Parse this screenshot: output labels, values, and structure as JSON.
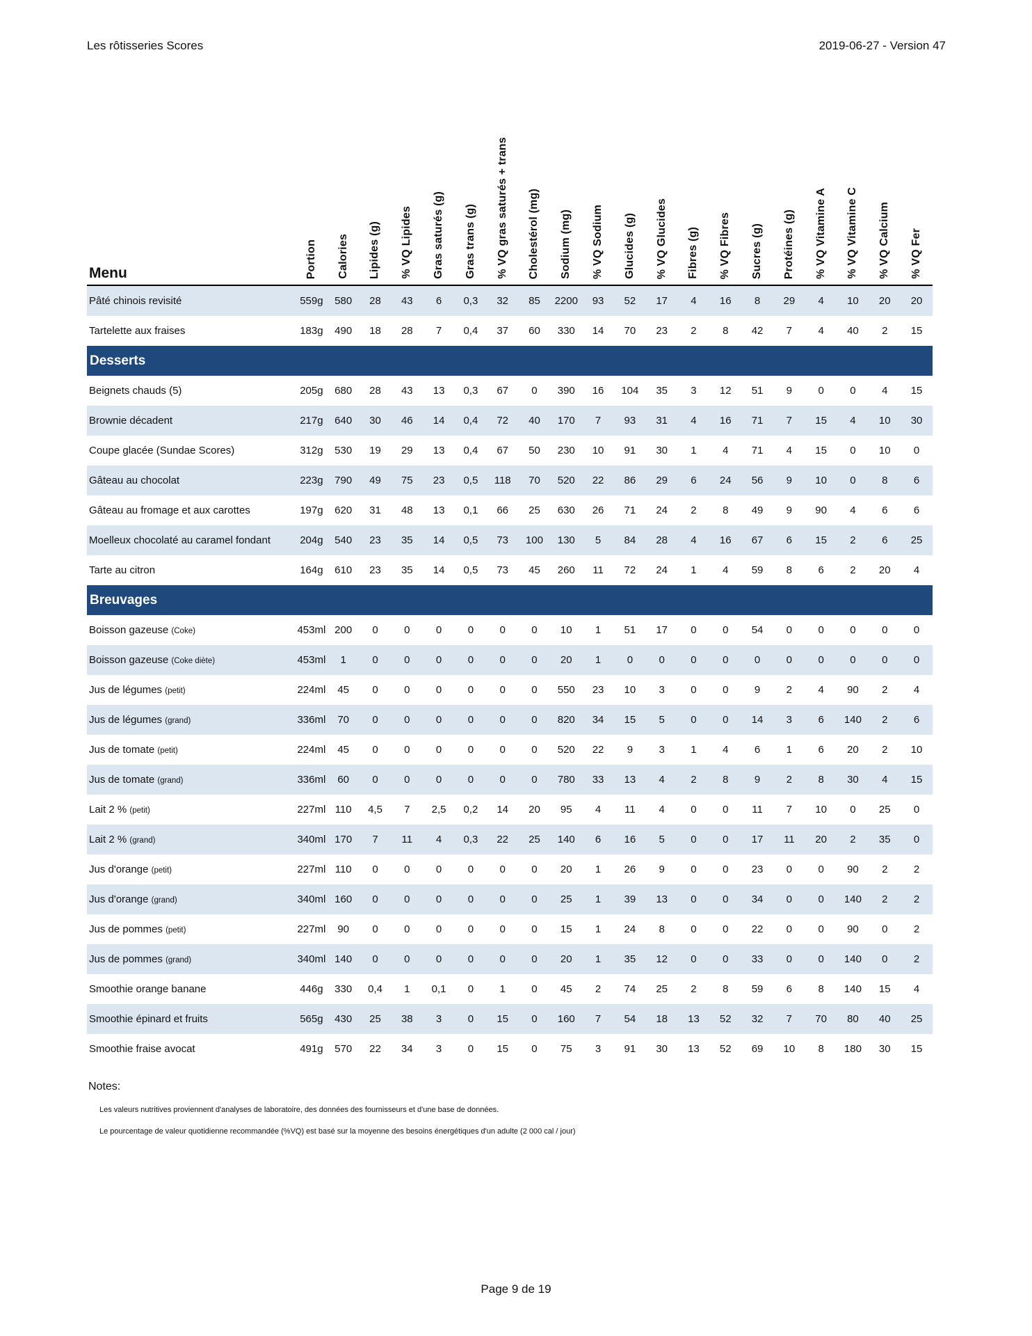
{
  "header": {
    "title": "Les rôtisseries Scores",
    "version": "2019-06-27 - Version 47"
  },
  "table": {
    "menu_label": "Menu",
    "columns": [
      "Portion",
      "Calories",
      "Lipides (g)",
      "% VQ Lipides",
      "Gras saturés (g)",
      "Gras trans (g)",
      "% VQ gras saturés + trans",
      "Cholestérol (mg)",
      "Sodium (mg)",
      "% VQ Sodium",
      "Glucides (g)",
      "% VQ Glucides",
      "Fibres (g)",
      "% VQ Fibres",
      "Sucres (g)",
      "Protéines (g)",
      "% VQ Vitamine A",
      "% VQ Vitamine C",
      "% VQ Calcium",
      "% VQ Fer"
    ],
    "sections": [
      {
        "title": null,
        "rows": [
          {
            "name": "Pâté chinois revisité",
            "note": "",
            "shaded": true,
            "values": [
              "559g",
              "580",
              "28",
              "43",
              "6",
              "0,3",
              "32",
              "85",
              "2200",
              "93",
              "52",
              "17",
              "4",
              "16",
              "8",
              "29",
              "4",
              "10",
              "20",
              "20"
            ]
          },
          {
            "name": "Tartelette aux fraises",
            "note": "",
            "shaded": false,
            "values": [
              "183g",
              "490",
              "18",
              "28",
              "7",
              "0,4",
              "37",
              "60",
              "330",
              "14",
              "70",
              "23",
              "2",
              "8",
              "42",
              "7",
              "4",
              "40",
              "2",
              "15"
            ]
          }
        ]
      },
      {
        "title": "Desserts",
        "rows": [
          {
            "name": "Beignets chauds (5)",
            "note": "",
            "shaded": false,
            "values": [
              "205g",
              "680",
              "28",
              "43",
              "13",
              "0,3",
              "67",
              "0",
              "390",
              "16",
              "104",
              "35",
              "3",
              "12",
              "51",
              "9",
              "0",
              "0",
              "4",
              "15"
            ]
          },
          {
            "name": "Brownie décadent",
            "note": "",
            "shaded": true,
            "values": [
              "217g",
              "640",
              "30",
              "46",
              "14",
              "0,4",
              "72",
              "40",
              "170",
              "7",
              "93",
              "31",
              "4",
              "16",
              "71",
              "7",
              "15",
              "4",
              "10",
              "30"
            ]
          },
          {
            "name": "Coupe glacée (Sundae Scores)",
            "note": "",
            "shaded": false,
            "values": [
              "312g",
              "530",
              "19",
              "29",
              "13",
              "0,4",
              "67",
              "50",
              "230",
              "10",
              "91",
              "30",
              "1",
              "4",
              "71",
              "4",
              "15",
              "0",
              "10",
              "0"
            ]
          },
          {
            "name": "Gâteau au chocolat",
            "note": "",
            "shaded": true,
            "values": [
              "223g",
              "790",
              "49",
              "75",
              "23",
              "0,5",
              "118",
              "70",
              "520",
              "22",
              "86",
              "29",
              "6",
              "24",
              "56",
              "9",
              "10",
              "0",
              "8",
              "6"
            ]
          },
          {
            "name": "Gâteau au fromage et aux carottes",
            "note": "",
            "shaded": false,
            "values": [
              "197g",
              "620",
              "31",
              "48",
              "13",
              "0,1",
              "66",
              "25",
              "630",
              "26",
              "71",
              "24",
              "2",
              "8",
              "49",
              "9",
              "90",
              "4",
              "6",
              "6"
            ]
          },
          {
            "name": "Moelleux chocolaté au caramel fondant",
            "note": "",
            "shaded": true,
            "values": [
              "204g",
              "540",
              "23",
              "35",
              "14",
              "0,5",
              "73",
              "100",
              "130",
              "5",
              "84",
              "28",
              "4",
              "16",
              "67",
              "6",
              "15",
              "2",
              "6",
              "25"
            ]
          },
          {
            "name": "Tarte au citron",
            "note": "",
            "shaded": false,
            "values": [
              "164g",
              "610",
              "23",
              "35",
              "14",
              "0,5",
              "73",
              "45",
              "260",
              "11",
              "72",
              "24",
              "1",
              "4",
              "59",
              "8",
              "6",
              "2",
              "20",
              "4"
            ]
          }
        ]
      },
      {
        "title": "Breuvages",
        "rows": [
          {
            "name": "Boisson gazeuse",
            "note": "(Coke)",
            "shaded": false,
            "values": [
              "453ml",
              "200",
              "0",
              "0",
              "0",
              "0",
              "0",
              "0",
              "10",
              "1",
              "51",
              "17",
              "0",
              "0",
              "54",
              "0",
              "0",
              "0",
              "0",
              "0"
            ]
          },
          {
            "name": "Boisson gazeuse",
            "note": "(Coke diète)",
            "shaded": true,
            "values": [
              "453ml",
              "1",
              "0",
              "0",
              "0",
              "0",
              "0",
              "0",
              "20",
              "1",
              "0",
              "0",
              "0",
              "0",
              "0",
              "0",
              "0",
              "0",
              "0",
              "0"
            ]
          },
          {
            "name": "Jus de légumes",
            "note": "(petit)",
            "shaded": false,
            "values": [
              "224ml",
              "45",
              "0",
              "0",
              "0",
              "0",
              "0",
              "0",
              "550",
              "23",
              "10",
              "3",
              "0",
              "0",
              "9",
              "2",
              "4",
              "90",
              "2",
              "4"
            ]
          },
          {
            "name": "Jus de légumes",
            "note": "(grand)",
            "shaded": true,
            "values": [
              "336ml",
              "70",
              "0",
              "0",
              "0",
              "0",
              "0",
              "0",
              "820",
              "34",
              "15",
              "5",
              "0",
              "0",
              "14",
              "3",
              "6",
              "140",
              "2",
              "6"
            ]
          },
          {
            "name": "Jus de tomate",
            "note": "(petit)",
            "shaded": false,
            "values": [
              "224ml",
              "45",
              "0",
              "0",
              "0",
              "0",
              "0",
              "0",
              "520",
              "22",
              "9",
              "3",
              "1",
              "4",
              "6",
              "1",
              "6",
              "20",
              "2",
              "10"
            ]
          },
          {
            "name": "Jus de tomate",
            "note": "(grand)",
            "shaded": true,
            "values": [
              "336ml",
              "60",
              "0",
              "0",
              "0",
              "0",
              "0",
              "0",
              "780",
              "33",
              "13",
              "4",
              "2",
              "8",
              "9",
              "2",
              "8",
              "30",
              "4",
              "15"
            ]
          },
          {
            "name": "Lait 2 %",
            "note": "(petit)",
            "shaded": false,
            "values": [
              "227ml",
              "110",
              "4,5",
              "7",
              "2,5",
              "0,2",
              "14",
              "20",
              "95",
              "4",
              "11",
              "4",
              "0",
              "0",
              "11",
              "7",
              "10",
              "0",
              "25",
              "0"
            ]
          },
          {
            "name": "Lait 2 %",
            "note": "(grand)",
            "shaded": true,
            "values": [
              "340ml",
              "170",
              "7",
              "11",
              "4",
              "0,3",
              "22",
              "25",
              "140",
              "6",
              "16",
              "5",
              "0",
              "0",
              "17",
              "11",
              "20",
              "2",
              "35",
              "0"
            ]
          },
          {
            "name": "Jus d'orange",
            "note": "(petit)",
            "shaded": false,
            "values": [
              "227ml",
              "110",
              "0",
              "0",
              "0",
              "0",
              "0",
              "0",
              "20",
              "1",
              "26",
              "9",
              "0",
              "0",
              "23",
              "0",
              "0",
              "90",
              "2",
              "2"
            ]
          },
          {
            "name": "Jus d'orange",
            "note": "(grand)",
            "shaded": true,
            "values": [
              "340ml",
              "160",
              "0",
              "0",
              "0",
              "0",
              "0",
              "0",
              "25",
              "1",
              "39",
              "13",
              "0",
              "0",
              "34",
              "0",
              "0",
              "140",
              "2",
              "2"
            ]
          },
          {
            "name": "Jus de pommes",
            "note": "(petit)",
            "shaded": false,
            "values": [
              "227ml",
              "90",
              "0",
              "0",
              "0",
              "0",
              "0",
              "0",
              "15",
              "1",
              "24",
              "8",
              "0",
              "0",
              "22",
              "0",
              "0",
              "90",
              "0",
              "2"
            ]
          },
          {
            "name": "Jus de pommes",
            "note": "(grand)",
            "shaded": true,
            "values": [
              "340ml",
              "140",
              "0",
              "0",
              "0",
              "0",
              "0",
              "0",
              "20",
              "1",
              "35",
              "12",
              "0",
              "0",
              "33",
              "0",
              "0",
              "140",
              "0",
              "2"
            ]
          },
          {
            "name": "Smoothie orange banane",
            "note": "",
            "shaded": false,
            "values": [
              "446g",
              "330",
              "0,4",
              "1",
              "0,1",
              "0",
              "1",
              "0",
              "45",
              "2",
              "74",
              "25",
              "2",
              "8",
              "59",
              "6",
              "8",
              "140",
              "15",
              "4"
            ]
          },
          {
            "name": "Smoothie épinard et fruits",
            "note": "",
            "shaded": true,
            "values": [
              "565g",
              "430",
              "25",
              "38",
              "3",
              "0",
              "15",
              "0",
              "160",
              "7",
              "54",
              "18",
              "13",
              "52",
              "32",
              "7",
              "70",
              "80",
              "40",
              "25"
            ]
          },
          {
            "name": "Smoothie fraise avocat",
            "note": "",
            "shaded": false,
            "values": [
              "491g",
              "570",
              "22",
              "34",
              "3",
              "0",
              "15",
              "0",
              "75",
              "3",
              "91",
              "30",
              "13",
              "52",
              "69",
              "10",
              "8",
              "180",
              "30",
              "15"
            ]
          }
        ]
      }
    ]
  },
  "notes": {
    "label": "Notes:",
    "items": [
      "Les valeurs nutritives proviennent d'analyses de laboratoire, des données des fournisseurs et d'une base de données.",
      "Le pourcentage de valeur quotidienne recommandée (%VQ) est basé sur la moyenne des besoins énergétiques d'un adulte (2 000 cal / jour)"
    ]
  },
  "footer": {
    "page": "Page 9 de 19"
  },
  "colors": {
    "section_bg": "#1f497d",
    "stripe": "#dce6f1"
  }
}
